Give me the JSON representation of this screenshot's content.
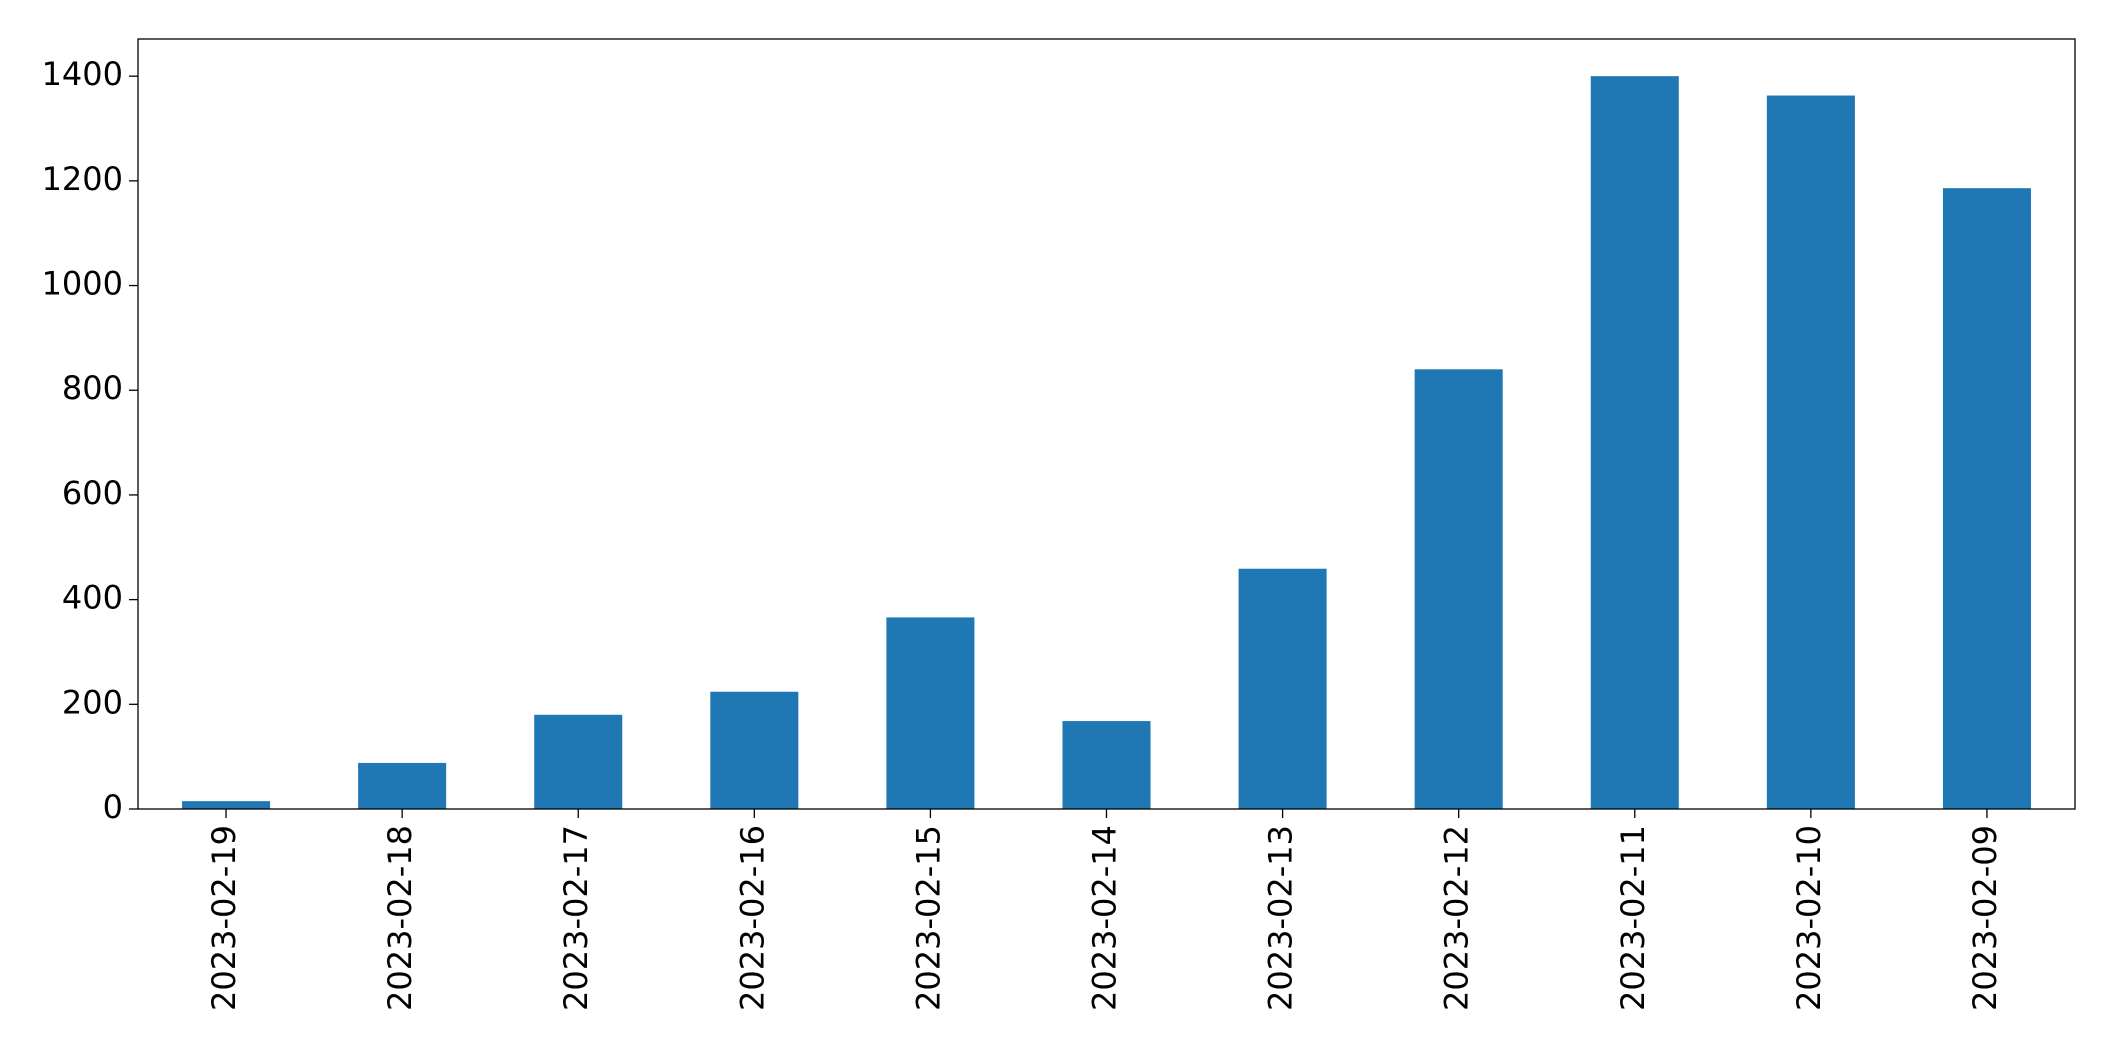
{
  "chart_data": {
    "type": "bar",
    "categories": [
      "2023-02-19",
      "2023-02-18",
      "2023-02-17",
      "2023-02-16",
      "2023-02-15",
      "2023-02-14",
      "2023-02-13",
      "2023-02-12",
      "2023-02-11",
      "2023-02-10",
      "2023-02-09"
    ],
    "values": [
      15,
      88,
      180,
      224,
      366,
      168,
      459,
      840,
      1400,
      1363,
      1186
    ],
    "color": "#1f77b4",
    "ylim": [
      0,
      1471
    ],
    "yticks": [
      0,
      200,
      400,
      600,
      800,
      1000,
      1200,
      1400
    ],
    "grid": false
  }
}
